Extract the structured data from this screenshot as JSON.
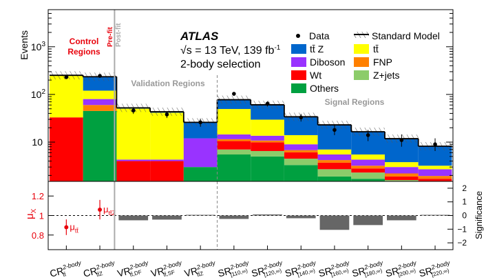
{
  "chart_data": {
    "type": "bar",
    "subtype": "stacked-log",
    "experiment": "ATLAS",
    "energy_label": "√s = 13 TeV, 139 fb",
    "energy_sup": "-1",
    "selection": "2-body selection",
    "ylabel": "Events",
    "ylim": [
      1.5,
      6000
    ],
    "yticks": [
      {
        "value": 10,
        "base": "10",
        "exp": ""
      },
      {
        "value": 100,
        "base": "10",
        "exp": "2"
      },
      {
        "value": 1000,
        "base": "10",
        "exp": "3"
      }
    ],
    "region_labels": {
      "control": [
        "Control",
        "Regions"
      ],
      "prefit": "Pre-fit",
      "postfit": "Post-fit",
      "validation": "Validation Regions",
      "signal": "Signal Regions"
    },
    "categories": [
      {
        "main": "CR",
        "sup": "2-body",
        "sub": "tt̄"
      },
      {
        "main": "CR",
        "sup": "2-body",
        "sub": "tt̄Z"
      },
      {
        "main": "VR",
        "sup": "2-body",
        "sub": "tt̄,DF"
      },
      {
        "main": "VR",
        "sup": "2-body",
        "sub": "tt̄,SF"
      },
      {
        "main": "VR",
        "sup": "2-body",
        "sub": "tt̄Z"
      },
      {
        "main": "SR",
        "sup": "2-body",
        "sub": "[110,∞)"
      },
      {
        "main": "SR",
        "sup": "2-body",
        "sub": "[120,∞)"
      },
      {
        "main": "SR",
        "sup": "2-body",
        "sub": "[140,∞)"
      },
      {
        "main": "SR",
        "sup": "2-body",
        "sub": "[160,∞)"
      },
      {
        "main": "SR",
        "sup": "2-body",
        "sub": "[180,∞)"
      },
      {
        "main": "SR",
        "sup": "2-body",
        "sub": "[200,∞)"
      },
      {
        "main": "SR",
        "sup": "2-body",
        "sub": "[220,∞)"
      }
    ],
    "series": [
      {
        "name": "Others",
        "color": "#00a040",
        "values": [
          0,
          45,
          0,
          0,
          3,
          5.5,
          5,
          3.3,
          1.9,
          1.7,
          1.2,
          1.1
        ]
      },
      {
        "name": "Z+jets",
        "color": "#8ccc6a",
        "values": [
          0,
          0,
          0,
          0,
          0,
          1.5,
          1.5,
          1.2,
          0.8,
          0.6,
          0.4,
          0.35
        ]
      },
      {
        "name": "Wt",
        "color": "#ff0000",
        "values": [
          33,
          0,
          4,
          4,
          0,
          3.5,
          3.4,
          1.6,
          1.0,
          0.5,
          0.3,
          0.25
        ]
      },
      {
        "name": "FNP",
        "color": "#ff8000",
        "values": [
          0,
          15,
          0,
          0,
          0,
          1,
          0.9,
          0.7,
          0.5,
          0.4,
          0.3,
          0.25
        ]
      },
      {
        "name": "Diboson",
        "color": "#9933ff",
        "values": [
          0,
          20,
          0.3,
          0.3,
          9,
          3,
          2.8,
          2.2,
          1.3,
          1.1,
          0.8,
          0.75
        ]
      },
      {
        "name": "tt̄",
        "color": "#ffff00",
        "values": [
          217,
          40,
          46,
          37,
          0,
          35,
          16,
          5,
          1.5,
          1.2,
          0.8,
          0.5
        ]
      },
      {
        "name": "tt̄ Z",
        "color": "#0066cc",
        "values": [
          2,
          115,
          2,
          2,
          14,
          28,
          31,
          20,
          16,
          11,
          8,
          5
        ]
      }
    ],
    "data_points": {
      "name": "Data",
      "values": [
        230,
        245,
        46,
        38,
        26,
        103,
        64,
        33,
        18,
        14,
        11,
        9
      ],
      "err_low": [
        15,
        16,
        7,
        6,
        5,
        10,
        8,
        6,
        4,
        3.5,
        3,
        2.5
      ],
      "err_high": [
        15,
        16,
        7,
        6,
        5,
        10,
        8,
        6,
        5,
        4,
        3.5,
        3
      ]
    },
    "legend": [
      {
        "name": "Data",
        "marker": "dot"
      },
      {
        "name": "Standard Model",
        "marker": "hatch-line"
      },
      {
        "name": "tt̄ Z",
        "marker": "box",
        "color": "#0066cc"
      },
      {
        "name": "tt̄",
        "marker": "box",
        "color": "#ffff00"
      },
      {
        "name": "Diboson",
        "marker": "box",
        "color": "#9933ff"
      },
      {
        "name": "FNP",
        "marker": "box",
        "color": "#ff8000"
      },
      {
        "name": "Wt",
        "marker": "box",
        "color": "#ff0000"
      },
      {
        "name": "Z+jets",
        "marker": "box",
        "color": "#8ccc6a"
      },
      {
        "name": "Others",
        "marker": "box",
        "color": "#00a040"
      }
    ],
    "ratio_panel": {
      "left_label": "μ",
      "left_label_sub": "X",
      "right_label": "Significance",
      "left_ylim": [
        0.65,
        1.35
      ],
      "left_ticks": [
        0.8,
        1,
        1.2
      ],
      "left_tick_labels": [
        "0.8",
        "1",
        "1.2"
      ],
      "right_ylim": [
        -2.5,
        2.5
      ],
      "right_ticks": [
        -2,
        -1,
        0,
        1,
        2
      ],
      "right_tick_labels": [
        "−2",
        "−1",
        "0",
        "1",
        "2"
      ],
      "mu_points": [
        {
          "category_index": 0,
          "value": 0.88,
          "err": 0.08,
          "label_main": "μ",
          "label_sub": "tt̄"
        },
        {
          "category_index": 1,
          "value": 1.06,
          "err": 0.1,
          "label_main": "μ",
          "label_sub": "tt̄Z"
        }
      ],
      "significance": [
        null,
        null,
        -0.35,
        -0.3,
        0.05,
        -0.25,
        0.08,
        -0.2,
        -1.05,
        -0.7,
        -0.35,
        0.05
      ]
    }
  }
}
